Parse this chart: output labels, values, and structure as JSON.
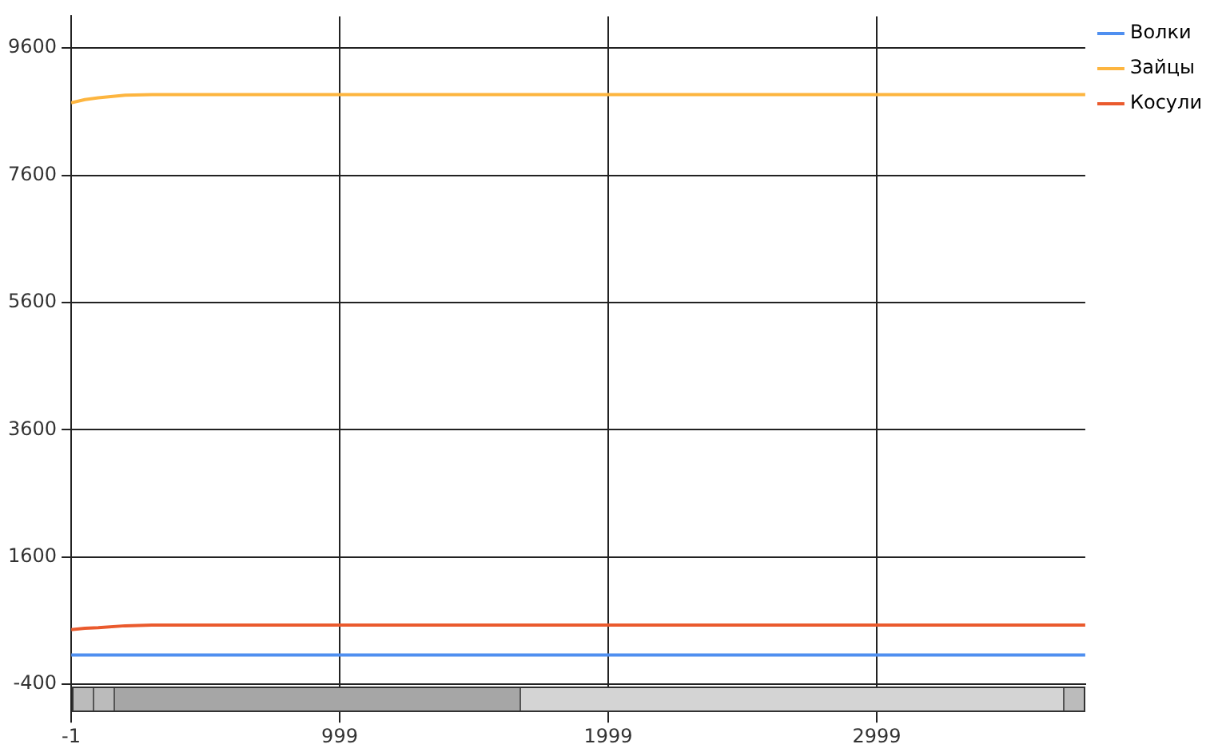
{
  "chart_data": {
    "type": "line",
    "x": [
      -1,
      50,
      100,
      200,
      300,
      1000,
      2000,
      3000,
      3776
    ],
    "series": [
      {
        "name": "Волки",
        "color": "#4f8ff0",
        "values": [
          60,
          60,
          60,
          60,
          60,
          60,
          60,
          60,
          60
        ]
      },
      {
        "name": "Зайцы",
        "color": "#fdb53f",
        "values": [
          8740,
          8790,
          8820,
          8860,
          8870,
          8870,
          8870,
          8870,
          8870
        ]
      },
      {
        "name": "Косули",
        "color": "#ea5a2d",
        "values": [
          460,
          480,
          490,
          520,
          530,
          530,
          530,
          530,
          530
        ]
      }
    ],
    "xlim": [
      -1,
      3776
    ],
    "xticks": [
      -1,
      999,
      1999,
      2999
    ],
    "ylim": [
      -400,
      10100
    ],
    "yticks": [
      -400,
      1600,
      3600,
      5600,
      7600,
      9600
    ],
    "grid": true,
    "legend": "top right",
    "marker": "none",
    "line_style": "solid"
  }
}
